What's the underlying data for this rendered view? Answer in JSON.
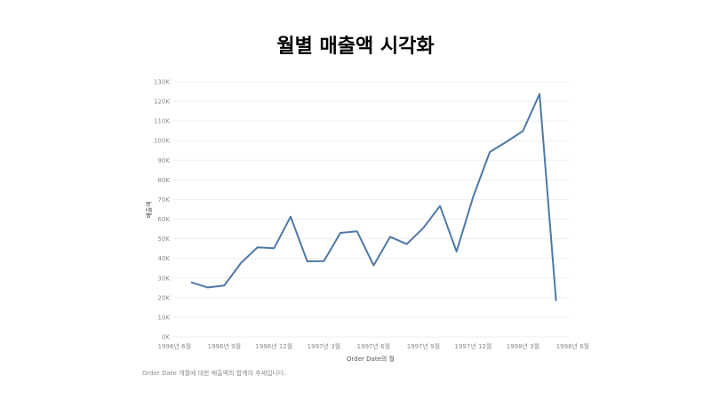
{
  "chart_data": {
    "type": "line",
    "title": "월별 매출액 시각화",
    "xlabel": "Order Date의 월",
    "ylabel": "매출액",
    "footnote": "Order Date 개월에 대한 매출액의 합계의 추세입니다.",
    "x": [
      "1996-07",
      "1996-08",
      "1996-09",
      "1996-10",
      "1996-11",
      "1996-12",
      "1997-01",
      "1997-02",
      "1997-03",
      "1997-04",
      "1997-05",
      "1997-06",
      "1997-07",
      "1997-08",
      "1997-09",
      "1997-10",
      "1997-11",
      "1997-12",
      "1998-01",
      "1998-02",
      "1998-03",
      "1998-04",
      "1998-05"
    ],
    "x_tick_labels": [
      {
        "x": "1996-06",
        "label": "1996년 6월"
      },
      {
        "x": "1996-09",
        "label": "1996년 9월"
      },
      {
        "x": "1996-12",
        "label": "1996년 12월"
      },
      {
        "x": "1997-03",
        "label": "1997년 3월"
      },
      {
        "x": "1997-06",
        "label": "1997년 6월"
      },
      {
        "x": "1997-09",
        "label": "1997년 9월"
      },
      {
        "x": "1997-12",
        "label": "1997년 12월"
      },
      {
        "x": "1998-03",
        "label": "1998년 3월"
      },
      {
        "x": "1998-06",
        "label": "1998년 6월"
      }
    ],
    "y_ticks": [
      0,
      10000,
      20000,
      30000,
      40000,
      50000,
      60000,
      70000,
      80000,
      90000,
      100000,
      110000,
      120000,
      130000
    ],
    "y_tick_labels": [
      "0K",
      "10K",
      "20K",
      "30K",
      "40K",
      "50K",
      "60K",
      "70K",
      "80K",
      "90K",
      "100K",
      "110K",
      "120K",
      "130K"
    ],
    "ylim": [
      0,
      130000
    ],
    "series": [
      {
        "color": "#4e79a7",
        "values": [
          27800,
          25200,
          26200,
          37600,
          45600,
          45200,
          61300,
          38500,
          38600,
          53000,
          53800,
          36400,
          51000,
          47300,
          55600,
          66700,
          43500,
          71400,
          94200,
          99400,
          104900,
          123800,
          18300
        ]
      }
    ],
    "grid": true,
    "legend": "none"
  }
}
